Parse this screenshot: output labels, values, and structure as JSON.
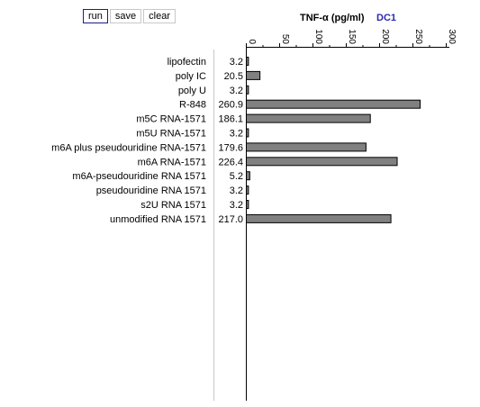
{
  "toolbar": {
    "run_label": "run",
    "save_label": "save",
    "clear_label": "clear"
  },
  "colors": {
    "bar_fill": "#808080",
    "bar_stroke": "#000000",
    "subtitle": "#2a2ab0",
    "run_border": "#1b1b8f"
  },
  "chart_data": {
    "type": "bar",
    "orientation": "horizontal",
    "title": "TNF-α (pg/ml)",
    "subtitle": "DC1",
    "categories": [
      "lipofectin",
      "poly IC",
      "poly U",
      "R-848",
      "m5C RNA-1571",
      "m5U RNA-1571",
      "m6A plus pseudouridine RNA-1571",
      "m6A RNA-1571",
      "m6A-pseudouridine RNA 1571",
      "pseudouridine RNA 1571",
      "s2U RNA 1571",
      "unmodified RNA 1571"
    ],
    "values": [
      3.2,
      20.5,
      3.2,
      260.9,
      186.1,
      3.2,
      179.6,
      226.4,
      5.2,
      3.2,
      3.2,
      217.0
    ],
    "value_labels": [
      "3.2",
      "20.5",
      "3.2",
      "260.9",
      "186.1",
      "3.2",
      "179.6",
      "226.4",
      "5.2",
      "3.2",
      "3.2",
      "217.0"
    ],
    "xlim": [
      0,
      300
    ],
    "xticks": [
      "0",
      "50",
      "100",
      "150",
      "200",
      "250",
      "300"
    ],
    "axis_position": "top",
    "grid": false
  }
}
